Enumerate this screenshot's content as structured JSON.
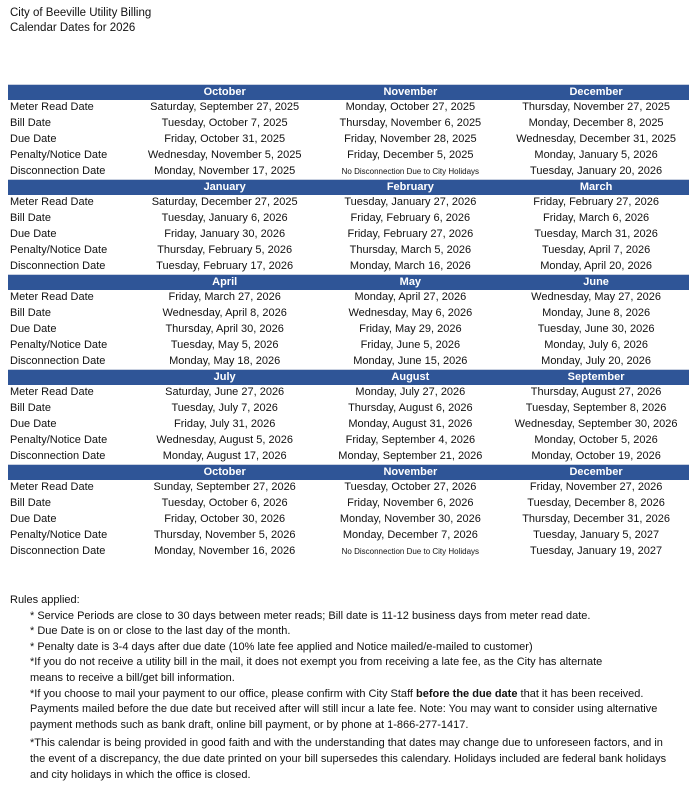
{
  "header": {
    "line1": "City of Beeville Utility Billing",
    "line2": "Calendar Dates for 2026"
  },
  "row_labels": [
    "Meter Read Date",
    "Bill Date",
    "Due Date",
    "Penalty/Notice Date",
    "Disconnection Date"
  ],
  "blocks": [
    {
      "months": [
        "October",
        "November",
        "December"
      ],
      "rows": [
        [
          "Saturday, September 27, 2025",
          "Monday, October 27, 2025",
          "Thursday, November 27, 2025"
        ],
        [
          "Tuesday, October 7, 2025",
          "Thursday, November 6, 2025",
          "Monday, December 8, 2025"
        ],
        [
          "Friday, October 31, 2025",
          "Friday, November 28, 2025",
          "Wednesday, December 31, 2025"
        ],
        [
          "Wednesday, November 5, 2025",
          "Friday, December 5, 2025",
          "Monday, January 5, 2026"
        ],
        [
          "Monday, November 17, 2025",
          "No Disconnection Due to City Holidays",
          "Tuesday, January 20, 2026"
        ]
      ]
    },
    {
      "months": [
        "January",
        "February",
        "March"
      ],
      "rows": [
        [
          "Saturday, December 27, 2025",
          "Tuesday, January 27, 2026",
          "Friday, February 27, 2026"
        ],
        [
          "Tuesday, January 6, 2026",
          "Friday, February 6, 2026",
          "Friday, March 6, 2026"
        ],
        [
          "Friday, January 30, 2026",
          "Friday, February 27, 2026",
          "Tuesday, March 31, 2026"
        ],
        [
          "Thursday, February 5, 2026",
          "Thursday, March 5, 2026",
          "Tuesday, April 7, 2026"
        ],
        [
          "Tuesday, February 17, 2026",
          "Monday, March 16, 2026",
          "Monday, April 20, 2026"
        ]
      ]
    },
    {
      "months": [
        "April",
        "May",
        "June"
      ],
      "rows": [
        [
          "Friday, March 27, 2026",
          "Monday, April 27, 2026",
          "Wednesday, May 27, 2026"
        ],
        [
          "Wednesday, April 8, 2026",
          "Wednesday, May 6, 2026",
          "Monday, June 8, 2026"
        ],
        [
          "Thursday, April 30, 2026",
          "Friday, May 29, 2026",
          "Tuesday, June 30, 2026"
        ],
        [
          "Tuesday, May 5, 2026",
          "Friday, June 5, 2026",
          "Monday, July 6, 2026"
        ],
        [
          "Monday, May 18, 2026",
          "Monday, June 15, 2026",
          "Monday, July 20, 2026"
        ]
      ]
    },
    {
      "months": [
        "July",
        "August",
        "September"
      ],
      "rows": [
        [
          "Saturday, June 27, 2026",
          "Monday, July 27, 2026",
          "Thursday, August 27, 2026"
        ],
        [
          "Tuesday, July 7, 2026",
          "Thursday, August 6, 2026",
          "Tuesday, September 8, 2026"
        ],
        [
          "Friday, July 31, 2026",
          "Monday, August 31, 2026",
          "Wednesday, September 30, 2026"
        ],
        [
          "Wednesday, August 5, 2026",
          "Friday, September 4, 2026",
          "Monday, October 5, 2026"
        ],
        [
          "Monday, August 17, 2026",
          "Monday, September 21, 2026",
          "Monday, October 19, 2026"
        ]
      ]
    },
    {
      "months": [
        "October",
        "November",
        "December"
      ],
      "rows": [
        [
          "Sunday, September 27, 2026",
          "Tuesday, October 27, 2026",
          "Friday, November 27, 2026"
        ],
        [
          "Tuesday, October 6, 2026",
          "Friday, November 6, 2026",
          "Tuesday, December 8, 2026"
        ],
        [
          "Friday, October 30, 2026",
          "Monday, November 30, 2026",
          "Thursday, December 31, 2026"
        ],
        [
          "Thursday, November 5, 2026",
          "Monday, December 7, 2026",
          "Tuesday, January 5, 2027"
        ],
        [
          "Monday, November 16, 2026",
          "No Disconnection Due to City Holidays",
          "Tuesday, January 19, 2027"
        ]
      ]
    }
  ],
  "rules": {
    "title": "Rules applied:",
    "r1": "* Service Periods are close to 30 days between meter reads; Bill date is 11-12 business days from meter read date.",
    "r2": "* Due Date is on or close to the last day of the month.",
    "r3": "* Penalty date is 3-4 days after due date (10% late fee applied and Notice mailed/e-mailed to customer)",
    "r4a": "*If you do not receive a utility bill in the mail, it does not exempt you from receiving a late fee, as the City has alternate",
    "r4b": "means to receive a bill/get bill information.",
    "r5a": "*If you choose to mail your payment to our office, please confirm with City Staff ",
    "r5bold": "before the due date",
    "r5b": " that it has been received.",
    "r5c": "Payments mailed before the due date but received after will still incur a late fee. Note: You may want to consider using alternative",
    "r5d": "payment methods such as bank draft, online bill payment, or by phone at 1-866-277-1417.",
    "r6a": "*This calendar is being provided in good faith and with the understanding that dates may change due to unforeseen factors, and in",
    "r6b": "the event of a discrepancy, the due date printed on your bill supersedes this calendary.  Holidays included are federal bank holidays",
    "r6c": "and city holidays in which the office is closed."
  },
  "colors": {
    "header_bg": "#2f5597",
    "header_text": "#ffffff"
  }
}
